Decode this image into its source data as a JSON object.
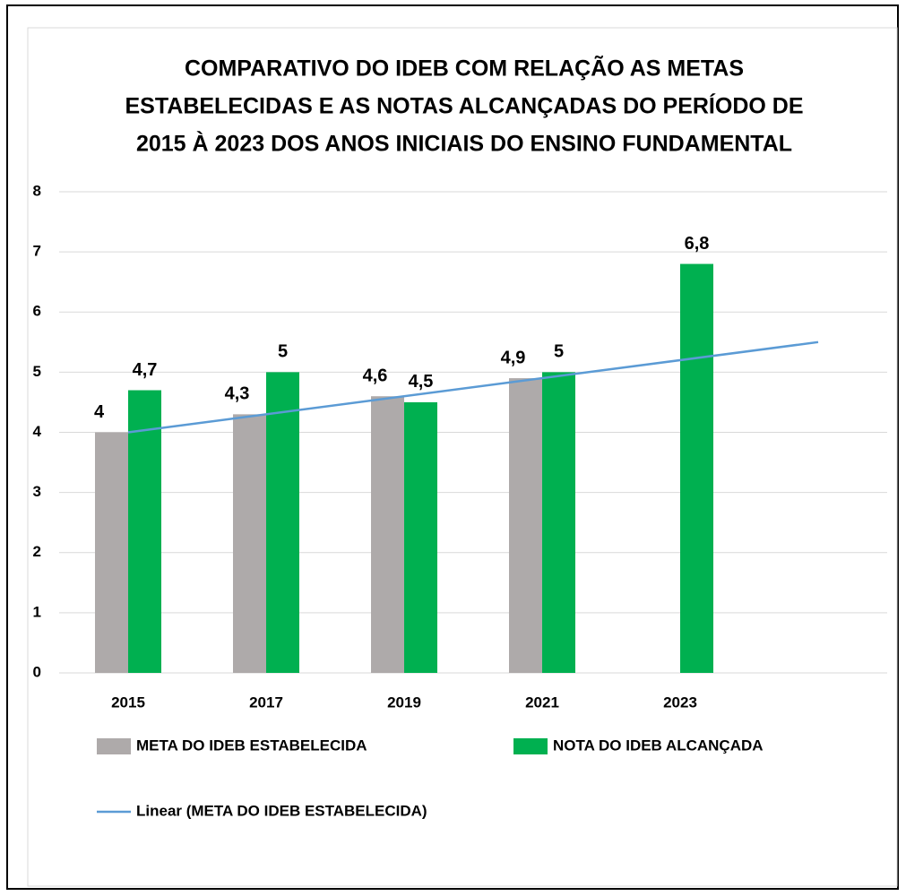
{
  "chart_data": {
    "type": "bar",
    "title": [
      "COMPARATIVO DO IDEB COM RELAÇÃO AS METAS",
      "ESTABELECIDAS E AS NOTAS ALCANÇADAS DO PERÍODO DE",
      "2015 À 2023 DOS ANOS INICIAIS DO ENSINO FUNDAMENTAL"
    ],
    "categories": [
      "2015",
      "2017",
      "2019",
      "2021",
      "2023"
    ],
    "series": [
      {
        "name": "META DO IDEB ESTABELECIDA",
        "color": "#aeaaaa",
        "values": [
          4,
          4.3,
          4.6,
          4.9,
          null
        ],
        "value_labels": [
          "4",
          "4,3",
          "4,6",
          "4,9",
          null
        ]
      },
      {
        "name": "NOTA DO IDEB ALCANÇADA",
        "color": "#00b050",
        "values": [
          4.7,
          5,
          4.5,
          5,
          6.8
        ],
        "value_labels": [
          "4,7",
          "5",
          "4,5",
          "5",
          "6,8"
        ]
      }
    ],
    "trendline": {
      "name": "Linear (META DO IDEB ESTABELECIDA)",
      "type": "linear",
      "series": 0,
      "forward": 1,
      "color": "#5b9bd5"
    },
    "ylim": [
      0,
      8
    ],
    "yticks": [
      0,
      1,
      2,
      3,
      4,
      5,
      6,
      7,
      8
    ],
    "grid": true
  }
}
